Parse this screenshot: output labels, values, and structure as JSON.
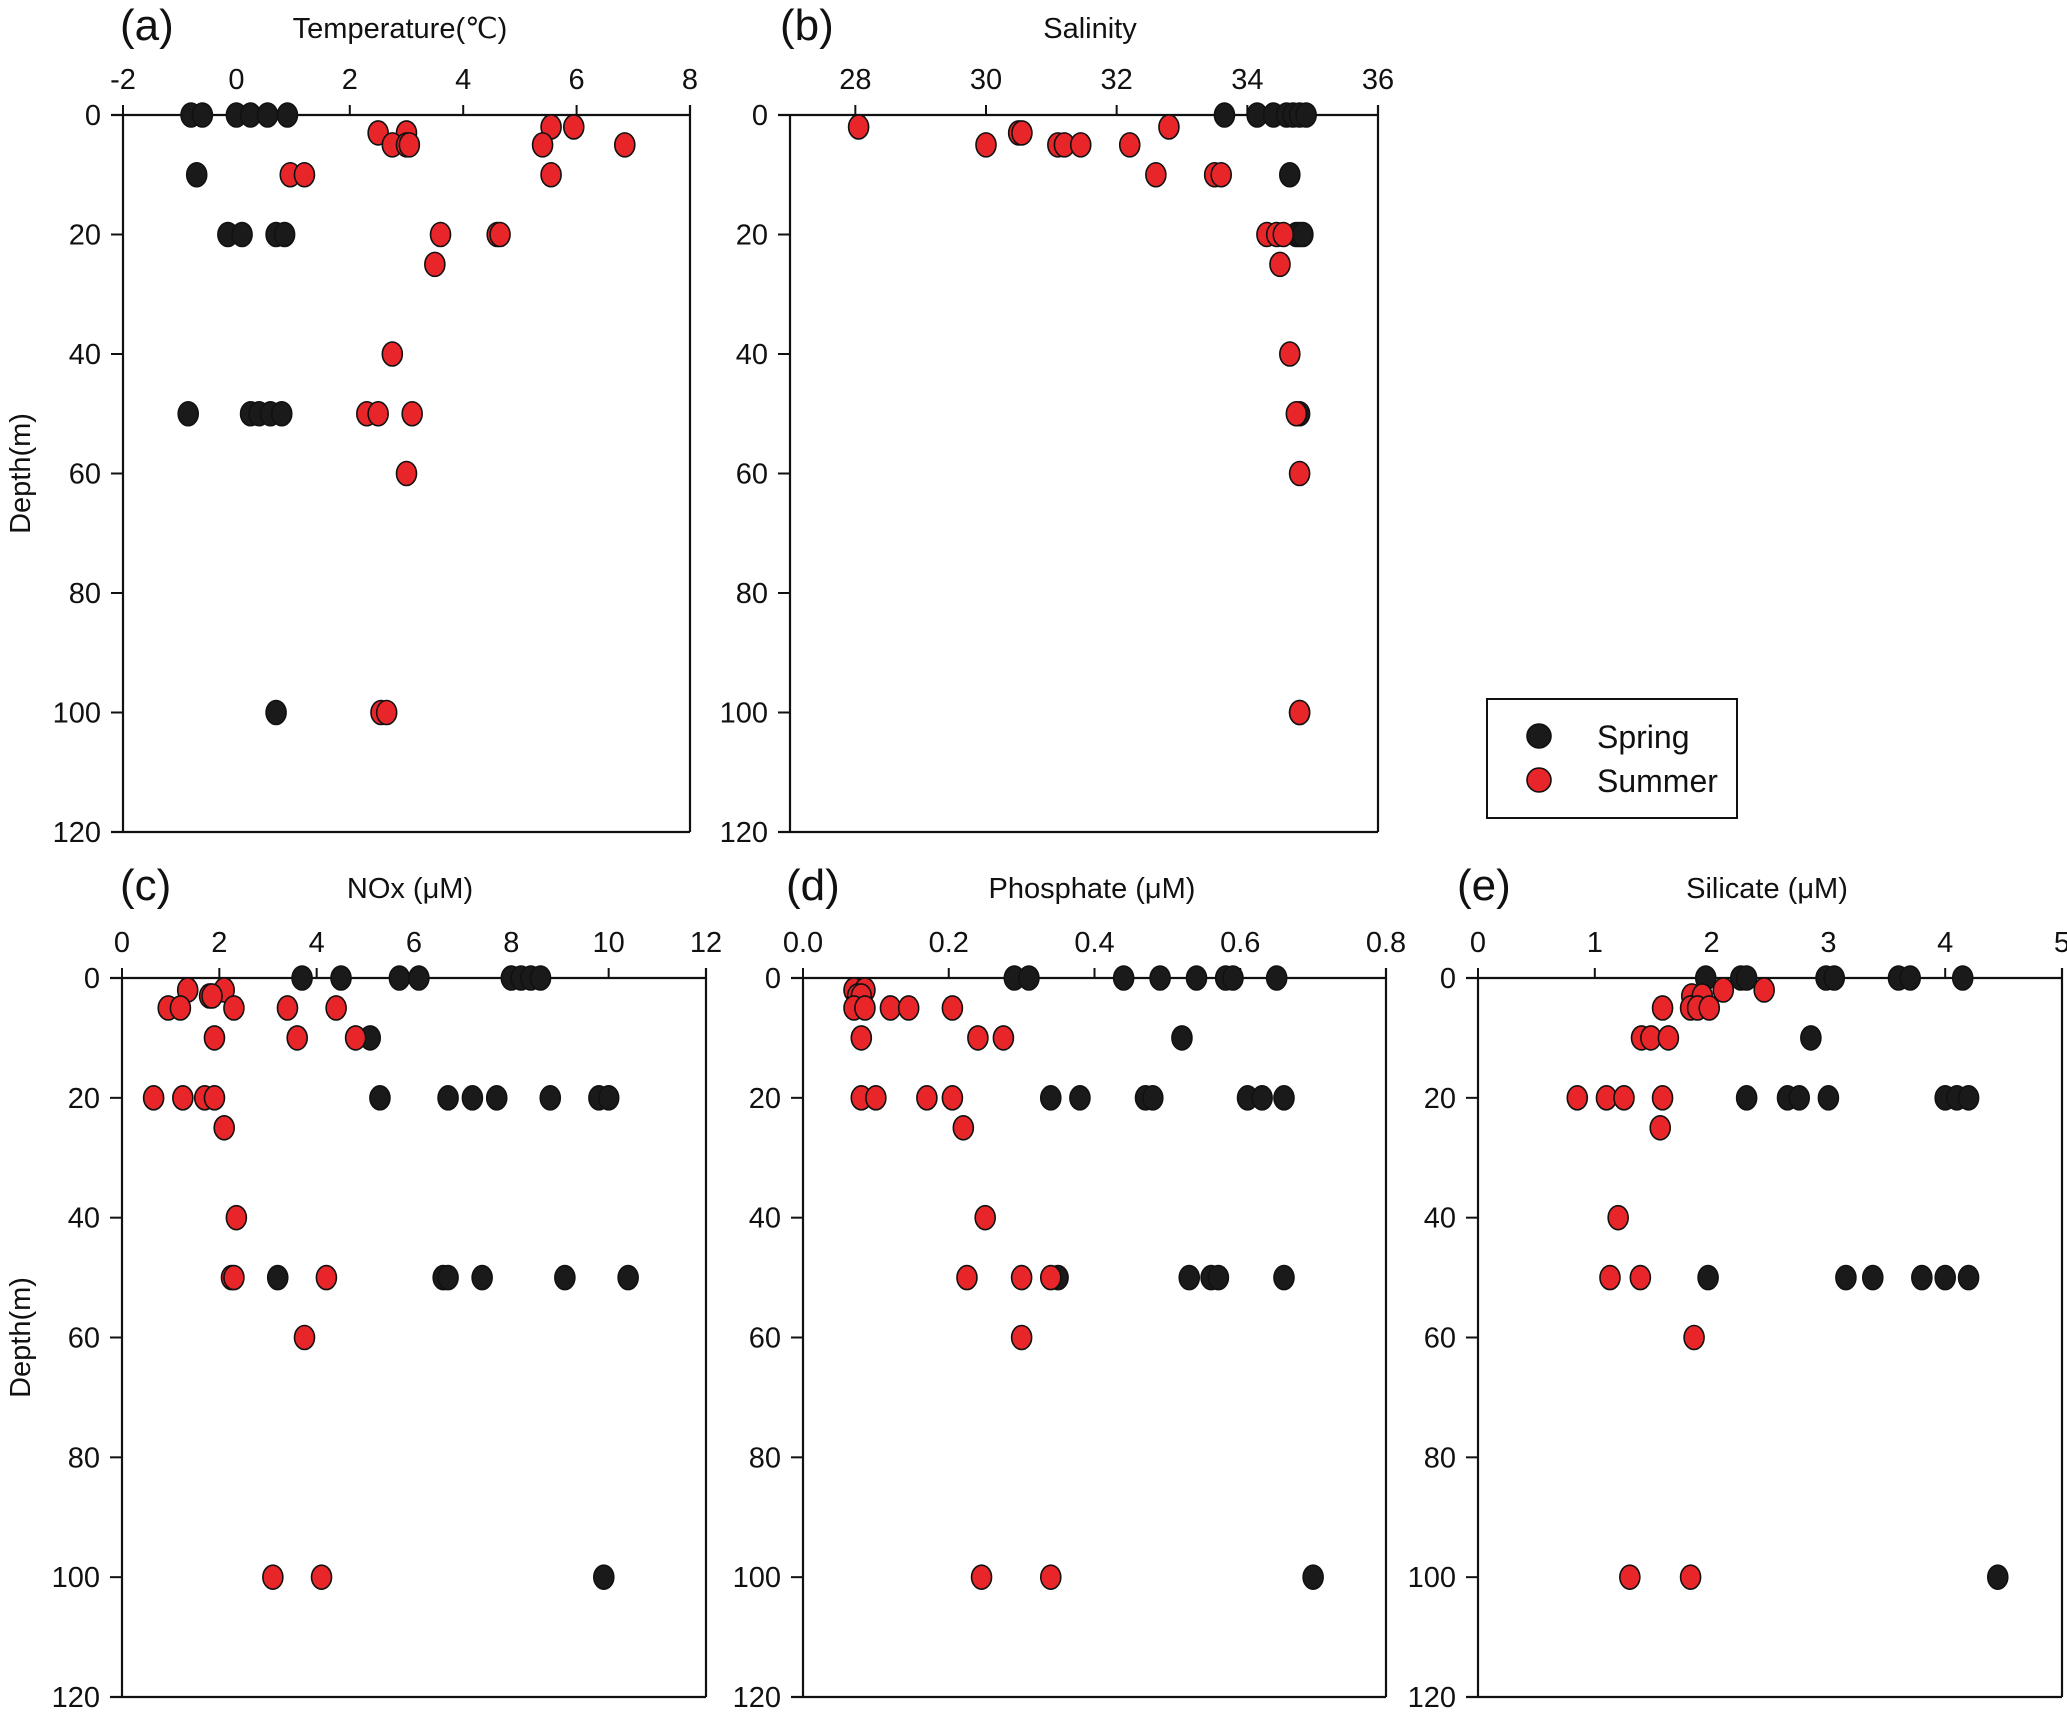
{
  "chart_data": [
    {
      "id": "a",
      "type": "scatter",
      "panel_label": "(a)",
      "title": "Temperature(℃)",
      "xlabel": "Temperature(℃)",
      "ylabel": "Depth(m)",
      "xlim": [
        -2,
        8
      ],
      "xticks": [
        "-2",
        "0",
        "2",
        "4",
        "6",
        "8"
      ],
      "xtick_values": [
        -2,
        0,
        2,
        4,
        6,
        8
      ],
      "ylim": [
        0,
        120
      ],
      "yticks": [
        "0",
        "20",
        "40",
        "60",
        "80",
        "100",
        "120"
      ],
      "ytick_values": [
        0,
        20,
        40,
        60,
        80,
        100,
        120
      ],
      "y_inverted": true,
      "show_ylabel": true,
      "series": [
        {
          "name": "Spring",
          "points": [
            [
              -0.8,
              0
            ],
            [
              -0.6,
              0
            ],
            [
              0.0,
              0
            ],
            [
              0.25,
              0
            ],
            [
              0.55,
              0
            ],
            [
              0.9,
              0
            ],
            [
              -0.7,
              10
            ],
            [
              -0.15,
              20
            ],
            [
              0.1,
              20
            ],
            [
              0.7,
              20
            ],
            [
              0.85,
              20
            ],
            [
              -0.85,
              50
            ],
            [
              0.25,
              50
            ],
            [
              0.4,
              50
            ],
            [
              0.6,
              50
            ],
            [
              0.8,
              50
            ],
            [
              0.7,
              100
            ]
          ]
        },
        {
          "name": "Summer",
          "points": [
            [
              5.55,
              2
            ],
            [
              5.95,
              2
            ],
            [
              2.5,
              3
            ],
            [
              3.0,
              3
            ],
            [
              2.75,
              5
            ],
            [
              3.0,
              5
            ],
            [
              3.05,
              5
            ],
            [
              5.4,
              5
            ],
            [
              6.85,
              5
            ],
            [
              0.95,
              10
            ],
            [
              1.2,
              10
            ],
            [
              5.55,
              10
            ],
            [
              3.6,
              20
            ],
            [
              4.6,
              20
            ],
            [
              4.65,
              20
            ],
            [
              3.5,
              25
            ],
            [
              2.75,
              40
            ],
            [
              2.3,
              50
            ],
            [
              2.5,
              50
            ],
            [
              3.1,
              50
            ],
            [
              3.0,
              60
            ],
            [
              2.55,
              100
            ],
            [
              2.65,
              100
            ]
          ]
        }
      ]
    },
    {
      "id": "b",
      "type": "scatter",
      "panel_label": "(b)",
      "title": "Salinity",
      "xlabel": "Salinity",
      "ylabel": "",
      "xlim": [
        27,
        36
      ],
      "xticks": [
        "28",
        "30",
        "32",
        "34",
        "36"
      ],
      "xtick_values": [
        28,
        30,
        32,
        34,
        36
      ],
      "ylim": [
        0,
        120
      ],
      "yticks": [
        "0",
        "20",
        "40",
        "60",
        "80",
        "100",
        "120"
      ],
      "ytick_values": [
        0,
        20,
        40,
        60,
        80,
        100,
        120
      ],
      "y_inverted": true,
      "show_ylabel": false,
      "series": [
        {
          "name": "Spring",
          "points": [
            [
              33.65,
              0
            ],
            [
              34.15,
              0
            ],
            [
              34.4,
              0
            ],
            [
              34.6,
              0
            ],
            [
              34.7,
              0
            ],
            [
              34.8,
              0
            ],
            [
              34.9,
              0
            ],
            [
              34.65,
              10
            ],
            [
              34.75,
              20
            ],
            [
              34.8,
              20
            ],
            [
              34.85,
              20
            ],
            [
              34.8,
              50
            ],
            [
              34.8,
              100
            ]
          ]
        },
        {
          "name": "Summer",
          "points": [
            [
              28.05,
              2
            ],
            [
              32.8,
              2
            ],
            [
              30.5,
              3
            ],
            [
              30.55,
              3
            ],
            [
              30.0,
              5
            ],
            [
              31.1,
              5
            ],
            [
              31.2,
              5
            ],
            [
              31.45,
              5
            ],
            [
              32.2,
              5
            ],
            [
              32.6,
              10
            ],
            [
              33.5,
              10
            ],
            [
              33.6,
              10
            ],
            [
              34.3,
              20
            ],
            [
              34.45,
              20
            ],
            [
              34.55,
              20
            ],
            [
              34.5,
              25
            ],
            [
              34.65,
              40
            ],
            [
              34.75,
              50
            ],
            [
              34.8,
              60
            ],
            [
              34.8,
              100
            ]
          ]
        }
      ]
    },
    {
      "id": "c",
      "type": "scatter",
      "panel_label": "(c)",
      "title": "NOx (μM)",
      "xlabel": "NOx (μM)",
      "ylabel": "Depth(m)",
      "xlim": [
        0,
        12
      ],
      "xticks": [
        "0",
        "2",
        "4",
        "6",
        "8",
        "10",
        "12"
      ],
      "xtick_values": [
        0,
        2,
        4,
        6,
        8,
        10,
        12
      ],
      "ylim": [
        0,
        120
      ],
      "yticks": [
        "0",
        "20",
        "40",
        "60",
        "80",
        "100",
        "120"
      ],
      "ytick_values": [
        0,
        20,
        40,
        60,
        80,
        100,
        120
      ],
      "y_inverted": true,
      "show_ylabel": true,
      "series": [
        {
          "name": "Spring",
          "points": [
            [
              3.7,
              0
            ],
            [
              4.5,
              0
            ],
            [
              5.7,
              0
            ],
            [
              6.1,
              0
            ],
            [
              8.0,
              0
            ],
            [
              8.2,
              0
            ],
            [
              8.4,
              0
            ],
            [
              8.6,
              0
            ],
            [
              5.1,
              10
            ],
            [
              5.3,
              20
            ],
            [
              6.7,
              20
            ],
            [
              7.2,
              20
            ],
            [
              7.7,
              20
            ],
            [
              8.8,
              20
            ],
            [
              9.8,
              20
            ],
            [
              10.0,
              20
            ],
            [
              3.2,
              50
            ],
            [
              6.6,
              50
            ],
            [
              6.7,
              50
            ],
            [
              7.4,
              50
            ],
            [
              9.1,
              50
            ],
            [
              10.4,
              50
            ],
            [
              9.9,
              100
            ]
          ]
        },
        {
          "name": "Summer",
          "points": [
            [
              1.35,
              2
            ],
            [
              2.1,
              2
            ],
            [
              1.8,
              3
            ],
            [
              1.85,
              3
            ],
            [
              0.95,
              5
            ],
            [
              1.2,
              5
            ],
            [
              2.3,
              5
            ],
            [
              3.4,
              5
            ],
            [
              4.4,
              5
            ],
            [
              1.9,
              10
            ],
            [
              3.6,
              10
            ],
            [
              4.8,
              10
            ],
            [
              0.65,
              20
            ],
            [
              1.25,
              20
            ],
            [
              1.7,
              20
            ],
            [
              1.9,
              20
            ],
            [
              2.1,
              25
            ],
            [
              2.35,
              40
            ],
            [
              2.25,
              50
            ],
            [
              2.3,
              50
            ],
            [
              4.2,
              50
            ],
            [
              3.75,
              60
            ],
            [
              3.1,
              100
            ],
            [
              4.1,
              100
            ]
          ]
        }
      ]
    },
    {
      "id": "d",
      "type": "scatter",
      "panel_label": "(d)",
      "title": "Phosphate (μM)",
      "xlabel": "Phosphate (μM)",
      "ylabel": "",
      "xlim": [
        0,
        0.8
      ],
      "xticks": [
        "0.0",
        "0.2",
        "0.4",
        "0.6",
        "0.8"
      ],
      "xtick_values": [
        0,
        0.2,
        0.4,
        0.6,
        0.8
      ],
      "ylim": [
        0,
        120
      ],
      "yticks": [
        "0",
        "20",
        "40",
        "60",
        "80",
        "100",
        "120"
      ],
      "ytick_values": [
        0,
        20,
        40,
        60,
        80,
        100,
        120
      ],
      "y_inverted": true,
      "show_ylabel": false,
      "series": [
        {
          "name": "Spring",
          "points": [
            [
              0.29,
              0
            ],
            [
              0.31,
              0
            ],
            [
              0.44,
              0
            ],
            [
              0.49,
              0
            ],
            [
              0.54,
              0
            ],
            [
              0.58,
              0
            ],
            [
              0.59,
              0
            ],
            [
              0.65,
              0
            ],
            [
              0.52,
              10
            ],
            [
              0.34,
              20
            ],
            [
              0.38,
              20
            ],
            [
              0.47,
              20
            ],
            [
              0.48,
              20
            ],
            [
              0.61,
              20
            ],
            [
              0.63,
              20
            ],
            [
              0.66,
              20
            ],
            [
              0.35,
              50
            ],
            [
              0.53,
              50
            ],
            [
              0.56,
              50
            ],
            [
              0.57,
              50
            ],
            [
              0.66,
              50
            ],
            [
              0.7,
              100
            ]
          ]
        },
        {
          "name": "Summer",
          "points": [
            [
              0.07,
              2
            ],
            [
              0.085,
              2
            ],
            [
              0.075,
              3
            ],
            [
              0.08,
              3
            ],
            [
              0.07,
              5
            ],
            [
              0.085,
              5
            ],
            [
              0.12,
              5
            ],
            [
              0.145,
              5
            ],
            [
              0.205,
              5
            ],
            [
              0.08,
              10
            ],
            [
              0.24,
              10
            ],
            [
              0.275,
              10
            ],
            [
              0.08,
              20
            ],
            [
              0.1,
              20
            ],
            [
              0.17,
              20
            ],
            [
              0.205,
              20
            ],
            [
              0.22,
              25
            ],
            [
              0.25,
              40
            ],
            [
              0.225,
              50
            ],
            [
              0.3,
              50
            ],
            [
              0.34,
              50
            ],
            [
              0.3,
              60
            ],
            [
              0.245,
              100
            ],
            [
              0.34,
              100
            ]
          ]
        }
      ]
    },
    {
      "id": "e",
      "type": "scatter",
      "panel_label": "(e)",
      "title": "Silicate (μM)",
      "xlabel": "Silicate (μM)",
      "ylabel": "",
      "xlim": [
        0,
        5
      ],
      "xticks": [
        "0",
        "1",
        "2",
        "3",
        "4",
        "5"
      ],
      "xtick_values": [
        0,
        1,
        2,
        3,
        4,
        5
      ],
      "ylim": [
        0,
        120
      ],
      "yticks": [
        "0",
        "20",
        "40",
        "60",
        "80",
        "100",
        "120"
      ],
      "ytick_values": [
        0,
        20,
        40,
        60,
        80,
        100,
        120
      ],
      "y_inverted": true,
      "show_ylabel": false,
      "series": [
        {
          "name": "Spring",
          "points": [
            [
              1.95,
              0
            ],
            [
              2.25,
              0
            ],
            [
              2.3,
              0
            ],
            [
              2.98,
              0
            ],
            [
              3.05,
              0
            ],
            [
              3.6,
              0
            ],
            [
              3.7,
              0
            ],
            [
              4.15,
              0
            ],
            [
              2.85,
              10
            ],
            [
              2.3,
              20
            ],
            [
              2.65,
              20
            ],
            [
              2.75,
              20
            ],
            [
              3.0,
              20
            ],
            [
              4.0,
              20
            ],
            [
              4.1,
              20
            ],
            [
              4.2,
              20
            ],
            [
              1.97,
              50
            ],
            [
              3.15,
              50
            ],
            [
              3.38,
              50
            ],
            [
              3.8,
              50
            ],
            [
              4.0,
              50
            ],
            [
              4.2,
              50
            ],
            [
              4.45,
              100
            ]
          ]
        },
        {
          "name": "Summer",
          "points": [
            [
              2.1,
              2
            ],
            [
              2.45,
              2
            ],
            [
              1.83,
              3
            ],
            [
              1.92,
              3
            ],
            [
              1.58,
              5
            ],
            [
              1.82,
              5
            ],
            [
              1.88,
              5
            ],
            [
              1.98,
              5
            ],
            [
              1.4,
              10
            ],
            [
              1.48,
              10
            ],
            [
              1.63,
              10
            ],
            [
              0.85,
              20
            ],
            [
              1.1,
              20
            ],
            [
              1.25,
              20
            ],
            [
              1.58,
              20
            ],
            [
              1.56,
              25
            ],
            [
              1.2,
              40
            ],
            [
              1.13,
              50
            ],
            [
              1.39,
              50
            ],
            [
              1.85,
              60
            ],
            [
              1.3,
              100
            ],
            [
              1.82,
              100
            ]
          ]
        }
      ]
    }
  ],
  "legend": {
    "entries": [
      {
        "label": "Spring",
        "color": "#1a1a1a"
      },
      {
        "label": "Summer",
        "color": "#e8262a"
      }
    ],
    "placement": "right-of-panel-b"
  },
  "colors": {
    "spring": "#1a1a1a",
    "summer": "#e8262a",
    "axis": "#111111"
  }
}
